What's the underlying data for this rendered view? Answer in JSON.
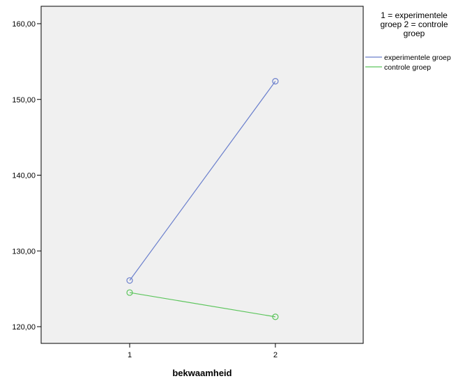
{
  "chart_data": {
    "type": "line",
    "x": [
      1,
      2
    ],
    "categories": [
      "1",
      "2"
    ],
    "series": [
      {
        "name": "experimentele groep",
        "values": [
          126.1,
          152.4
        ],
        "color": "#6a7fcc"
      },
      {
        "name": "controle groep",
        "values": [
          124.5,
          121.3
        ],
        "color": "#5cc55c"
      }
    ],
    "title": "",
    "xlabel": "bekwaamheid",
    "ylabel": "",
    "ylim": [
      118,
      162
    ],
    "xlim": [
      0.4,
      2.6
    ],
    "yticks": [
      120,
      130,
      140,
      150,
      160
    ],
    "ytick_labels": [
      "120,00",
      "130,00",
      "140,00",
      "150,00",
      "160,00"
    ],
    "legend": {
      "title_lines": [
        "1 = experimentele",
        "groep 2 = controle",
        "groep"
      ],
      "placement": "right"
    },
    "grid": false,
    "plot_background": "#f0f0f0",
    "marker": "open-circle"
  }
}
